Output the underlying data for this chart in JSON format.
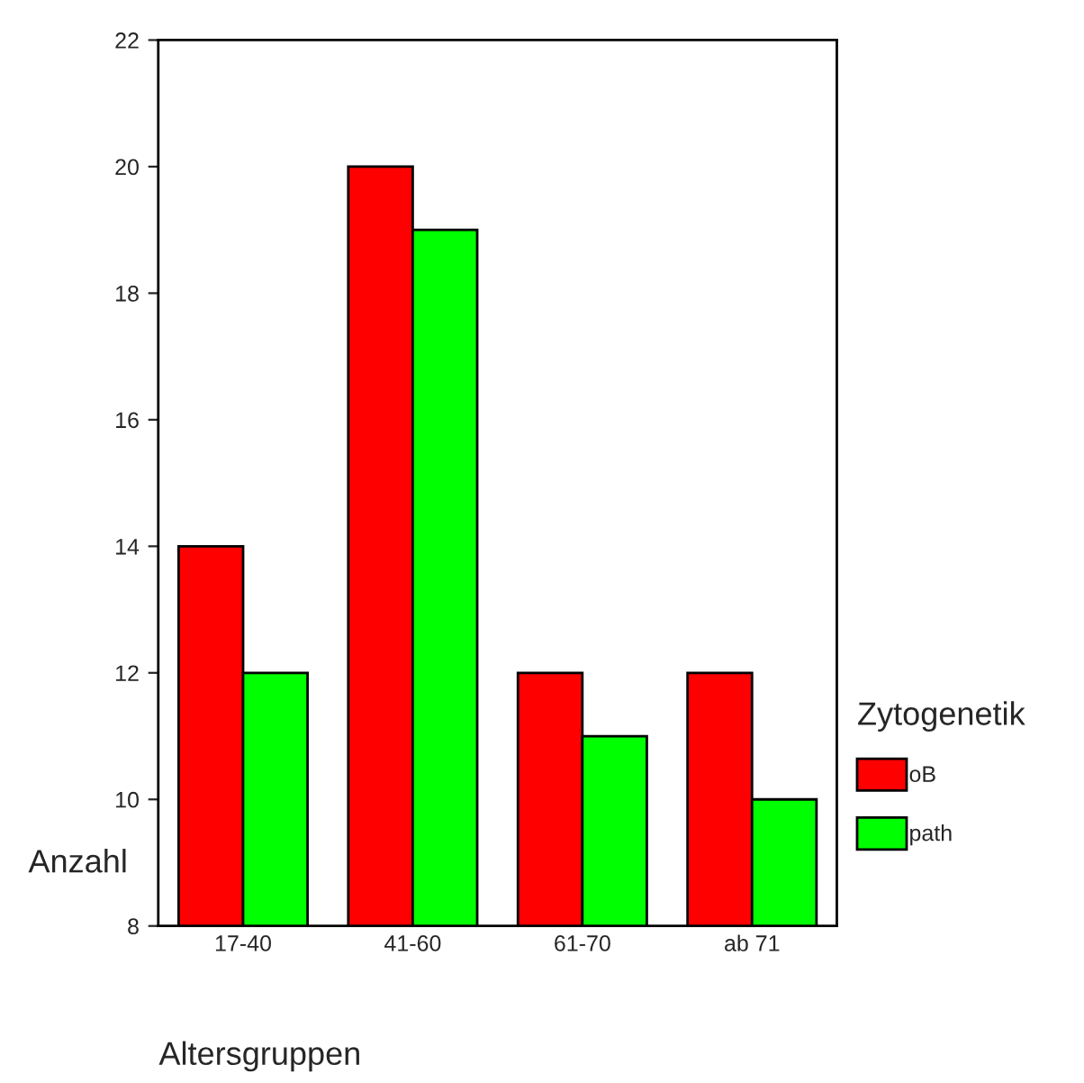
{
  "chart_data": {
    "type": "bar",
    "xlabel": "Altersgruppen",
    "ylabel": "Anzahl",
    "legend_title": "Zytogenetik",
    "categories": [
      "17-40",
      "41-60",
      "61-70",
      "ab 71"
    ],
    "series": [
      {
        "name": "oB",
        "color": "#ff0000",
        "values": [
          14,
          20,
          12,
          12
        ]
      },
      {
        "name": "path",
        "color": "#00ff00",
        "values": [
          12,
          19,
          11,
          10
        ]
      }
    ],
    "ylim": [
      8,
      22
    ],
    "yticks": [
      8,
      10,
      12,
      14,
      16,
      18,
      20,
      22
    ],
    "grid": false,
    "legend": "right"
  }
}
